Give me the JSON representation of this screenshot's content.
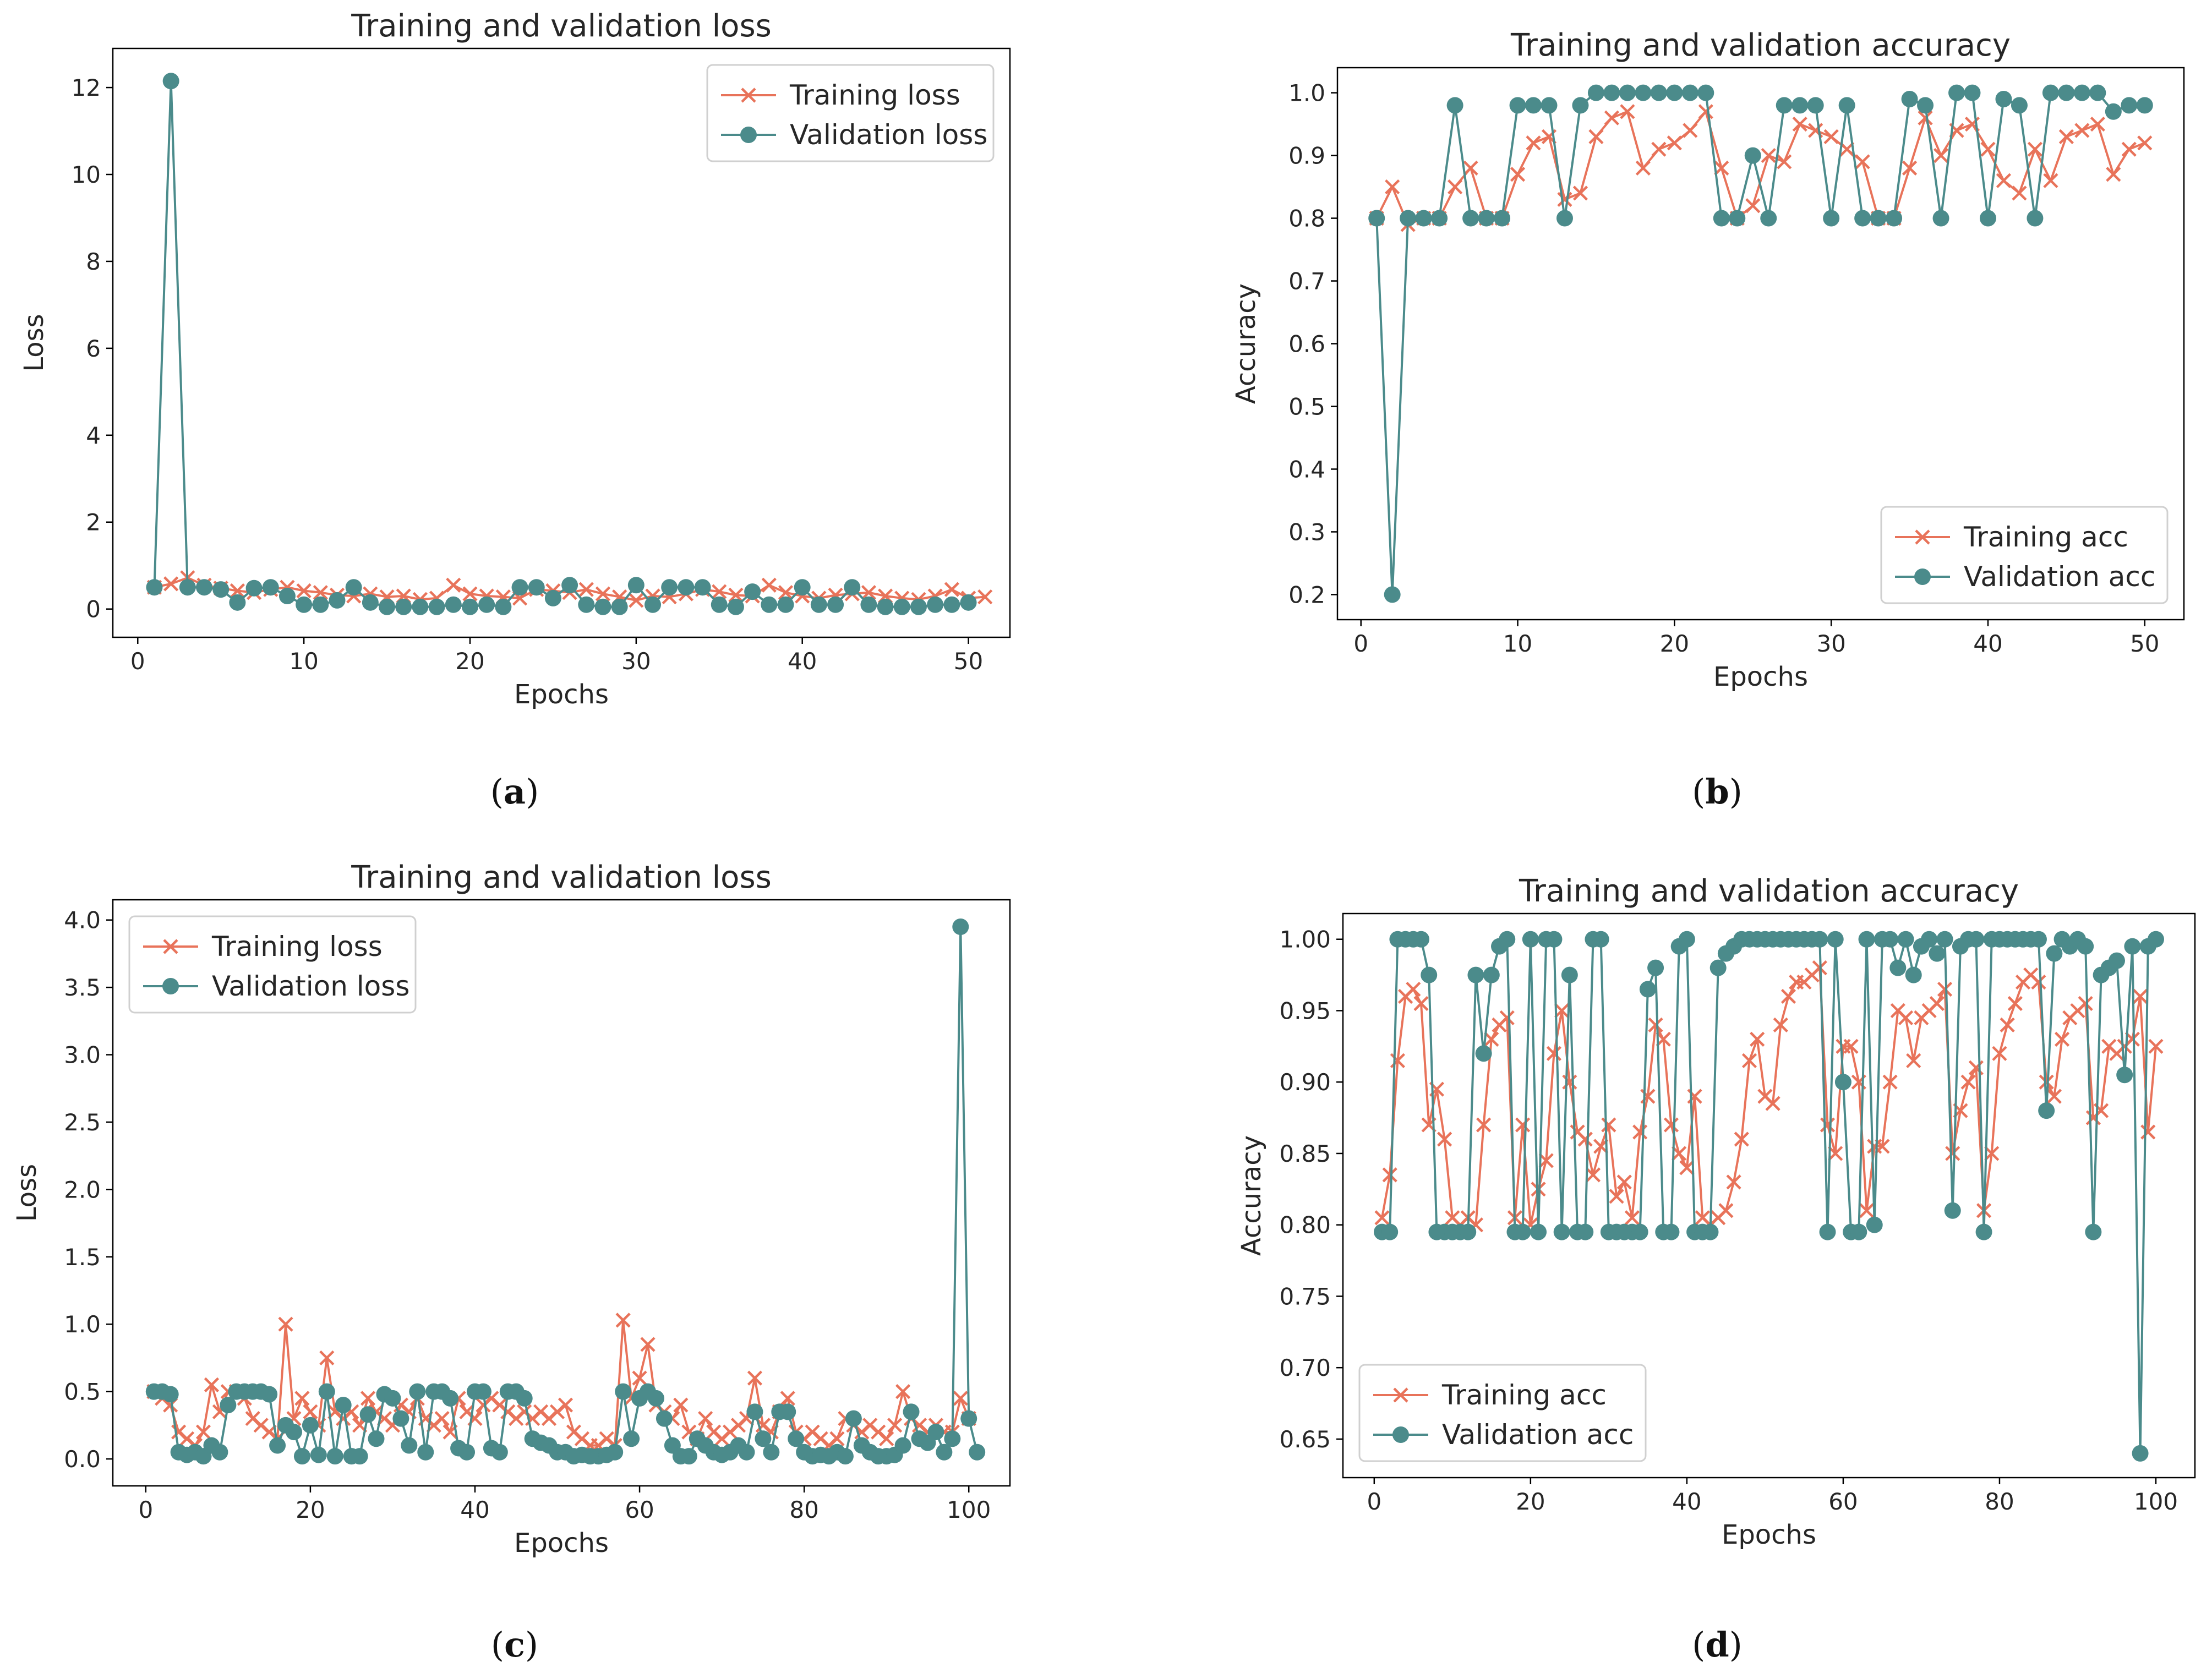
{
  "colors": {
    "training": "#e8735a",
    "validation": "#4b8b8b"
  },
  "chart_data": [
    {
      "panel": "a",
      "caption_letter": "a",
      "type": "line",
      "title": "Training and validation loss",
      "xlabel": "Epochs",
      "ylabel": "Loss",
      "xlim": [
        -1.5,
        52.5
      ],
      "ylim": [
        -0.65,
        12.9
      ],
      "xticks": [
        0,
        10,
        20,
        30,
        40,
        50
      ],
      "yticks": [
        0,
        2,
        4,
        6,
        8,
        10,
        12
      ],
      "legend_loc": "upper right",
      "x_start": 1,
      "series": [
        {
          "name": "Training loss",
          "marker": "x",
          "values": [
            0.5,
            0.58,
            0.72,
            0.55,
            0.48,
            0.42,
            0.38,
            0.45,
            0.5,
            0.42,
            0.38,
            0.32,
            0.3,
            0.35,
            0.28,
            0.3,
            0.22,
            0.25,
            0.55,
            0.35,
            0.3,
            0.28,
            0.25,
            0.45,
            0.42,
            0.38,
            0.45,
            0.35,
            0.28,
            0.2,
            0.3,
            0.28,
            0.35,
            0.45,
            0.4,
            0.32,
            0.3,
            0.55,
            0.38,
            0.3,
            0.25,
            0.32,
            0.35,
            0.38,
            0.3,
            0.25,
            0.22,
            0.3,
            0.45,
            0.25,
            0.28
          ]
        },
        {
          "name": "Validation loss",
          "marker": "o",
          "values": [
            0.5,
            12.15,
            0.5,
            0.5,
            0.45,
            0.15,
            0.48,
            0.5,
            0.3,
            0.1,
            0.1,
            0.2,
            0.5,
            0.15,
            0.05,
            0.05,
            0.05,
            0.05,
            0.1,
            0.05,
            0.1,
            0.05,
            0.5,
            0.5,
            0.25,
            0.55,
            0.1,
            0.05,
            0.05,
            0.55,
            0.1,
            0.5,
            0.5,
            0.5,
            0.1,
            0.05,
            0.4,
            0.1,
            0.1,
            0.5,
            0.1,
            0.1,
            0.5,
            0.1,
            0.05,
            0.05,
            0.05,
            0.1,
            0.1,
            0.15
          ]
        }
      ]
    },
    {
      "panel": "b",
      "caption_letter": "b",
      "type": "line",
      "title": "Training and validation accuracy",
      "xlabel": "Epochs",
      "ylabel": "Accuracy",
      "xlim": [
        -1.5,
        52.5
      ],
      "ylim": [
        0.16,
        1.04
      ],
      "xticks": [
        0,
        10,
        20,
        30,
        40,
        50
      ],
      "yticks": [
        0.2,
        0.3,
        0.4,
        0.5,
        0.6,
        0.7,
        0.8,
        0.9,
        1.0
      ],
      "legend_loc": "lower right",
      "x_start": 1,
      "series": [
        {
          "name": "Training acc",
          "marker": "x",
          "values": [
            0.8,
            0.85,
            0.79,
            0.8,
            0.8,
            0.85,
            0.88,
            0.8,
            0.8,
            0.87,
            0.92,
            0.93,
            0.83,
            0.84,
            0.93,
            0.96,
            0.97,
            0.88,
            0.91,
            0.92,
            0.94,
            0.97,
            0.88,
            0.8,
            0.82,
            0.9,
            0.89,
            0.95,
            0.94,
            0.93,
            0.91,
            0.89,
            0.8,
            0.8,
            0.88,
            0.96,
            0.9,
            0.94,
            0.95,
            0.91,
            0.86,
            0.84,
            0.91,
            0.86,
            0.93,
            0.94,
            0.95,
            0.87,
            0.91,
            0.92
          ]
        },
        {
          "name": "Validation acc",
          "marker": "o",
          "values": [
            0.8,
            0.2,
            0.8,
            0.8,
            0.8,
            0.98,
            0.8,
            0.8,
            0.8,
            0.98,
            0.98,
            0.98,
            0.8,
            0.98,
            1.0,
            1.0,
            1.0,
            1.0,
            1.0,
            1.0,
            1.0,
            1.0,
            0.8,
            0.8,
            0.9,
            0.8,
            0.98,
            0.98,
            0.98,
            0.8,
            0.98,
            0.8,
            0.8,
            0.8,
            0.99,
            0.98,
            0.8,
            1.0,
            1.0,
            0.8,
            0.99,
            0.98,
            0.8,
            1.0,
            1.0,
            1.0,
            1.0,
            0.97,
            0.98,
            0.98
          ]
        }
      ]
    },
    {
      "panel": "c",
      "caption_letter": "c",
      "type": "line",
      "title": "Training and validation loss",
      "xlabel": "Epochs",
      "ylabel": "Loss",
      "xlim": [
        -4,
        105
      ],
      "ylim": [
        -0.2,
        4.15
      ],
      "xticks": [
        0,
        20,
        40,
        60,
        80,
        100
      ],
      "yticks": [
        0.0,
        0.5,
        1.0,
        1.5,
        2.0,
        2.5,
        3.0,
        3.5,
        4.0
      ],
      "legend_loc": "upper left",
      "x_start": 1,
      "series": [
        {
          "name": "Training loss",
          "marker": "x",
          "values": [
            0.5,
            0.45,
            0.4,
            0.2,
            0.15,
            0.1,
            0.2,
            0.55,
            0.35,
            0.5,
            0.5,
            0.45,
            0.3,
            0.25,
            0.2,
            0.15,
            1.0,
            0.3,
            0.45,
            0.35,
            0.25,
            0.75,
            0.35,
            0.3,
            0.35,
            0.25,
            0.45,
            0.35,
            0.3,
            0.25,
            0.4,
            0.35,
            0.45,
            0.3,
            0.25,
            0.3,
            0.2,
            0.45,
            0.35,
            0.3,
            0.4,
            0.45,
            0.4,
            0.35,
            0.3,
            0.35,
            0.3,
            0.35,
            0.3,
            0.35,
            0.4,
            0.2,
            0.15,
            0.1,
            0.1,
            0.15,
            0.1,
            1.03,
            0.45,
            0.6,
            0.85,
            0.4,
            0.35,
            0.3,
            0.4,
            0.2,
            0.15,
            0.3,
            0.2,
            0.15,
            0.2,
            0.25,
            0.3,
            0.6,
            0.25,
            0.2,
            0.35,
            0.45,
            0.2,
            0.15,
            0.2,
            0.15,
            0.1,
            0.15,
            0.3,
            0.25,
            0.2,
            0.25,
            0.2,
            0.15,
            0.25,
            0.5,
            0.3,
            0.25,
            0.2,
            0.25,
            0.2,
            0.2,
            0.45,
            0.3
          ]
        },
        {
          "name": "Validation loss",
          "marker": "o",
          "values": [
            0.5,
            0.5,
            0.48,
            0.05,
            0.03,
            0.05,
            0.02,
            0.1,
            0.05,
            0.4,
            0.5,
            0.5,
            0.5,
            0.5,
            0.48,
            0.1,
            0.25,
            0.2,
            0.02,
            0.25,
            0.03,
            0.5,
            0.02,
            0.4,
            0.02,
            0.02,
            0.33,
            0.15,
            0.48,
            0.45,
            0.3,
            0.1,
            0.5,
            0.05,
            0.5,
            0.5,
            0.45,
            0.08,
            0.05,
            0.5,
            0.5,
            0.08,
            0.05,
            0.5,
            0.5,
            0.45,
            0.15,
            0.12,
            0.1,
            0.05,
            0.05,
            0.02,
            0.03,
            0.02,
            0.02,
            0.03,
            0.05,
            0.5,
            0.15,
            0.45,
            0.5,
            0.45,
            0.3,
            0.1,
            0.02,
            0.02,
            0.15,
            0.1,
            0.05,
            0.03,
            0.05,
            0.1,
            0.05,
            0.35,
            0.15,
            0.05,
            0.35,
            0.35,
            0.15,
            0.05,
            0.02,
            0.03,
            0.02,
            0.05,
            0.02,
            0.3,
            0.1,
            0.05,
            0.02,
            0.02,
            0.03,
            0.1,
            0.35,
            0.15,
            0.12,
            0.2,
            0.05,
            0.15,
            3.95,
            0.3,
            0.05
          ]
        }
      ]
    },
    {
      "panel": "d",
      "caption_letter": "d",
      "type": "line",
      "title": "Training and validation accuracy",
      "xlabel": "Epochs",
      "ylabel": "Accuracy",
      "xlim": [
        -4,
        105
      ],
      "ylim": [
        0.623,
        1.018
      ],
      "xticks": [
        0,
        20,
        40,
        60,
        80,
        100
      ],
      "yticks": [
        0.65,
        0.7,
        0.75,
        0.8,
        0.85,
        0.9,
        0.95,
        1.0
      ],
      "legend_loc": "lower left",
      "x_start": 1,
      "series": [
        {
          "name": "Training acc",
          "marker": "x",
          "values": [
            0.805,
            0.835,
            0.915,
            0.96,
            0.965,
            0.955,
            0.87,
            0.895,
            0.86,
            0.805,
            0.8,
            0.805,
            0.8,
            0.87,
            0.93,
            0.94,
            0.945,
            0.805,
            0.87,
            0.8,
            0.825,
            0.845,
            0.92,
            0.95,
            0.9,
            0.865,
            0.86,
            0.835,
            0.855,
            0.87,
            0.82,
            0.83,
            0.805,
            0.865,
            0.89,
            0.94,
            0.93,
            0.87,
            0.85,
            0.84,
            0.89,
            0.805,
            0.8,
            0.805,
            0.81,
            0.83,
            0.86,
            0.915,
            0.93,
            0.89,
            0.885,
            0.94,
            0.96,
            0.97,
            0.97,
            0.975,
            0.98,
            0.87,
            0.85,
            0.925,
            0.925,
            0.9,
            0.81,
            0.855,
            0.855,
            0.9,
            0.95,
            0.945,
            0.915,
            0.945,
            0.95,
            0.955,
            0.965,
            0.85,
            0.88,
            0.9,
            0.91,
            0.81,
            0.85,
            0.92,
            0.94,
            0.955,
            0.97,
            0.975,
            0.97,
            0.9,
            0.89,
            0.93,
            0.945,
            0.95,
            0.955,
            0.875,
            0.88,
            0.925,
            0.92,
            0.925,
            0.93,
            0.96,
            0.865,
            0.925
          ]
        },
        {
          "name": "Validation acc",
          "marker": "o",
          "values": [
            0.795,
            0.795,
            1.0,
            1.0,
            1.0,
            1.0,
            0.975,
            0.795,
            0.795,
            0.795,
            0.795,
            0.795,
            0.975,
            0.92,
            0.975,
            0.995,
            1.0,
            0.795,
            0.795,
            1.0,
            0.795,
            1.0,
            1.0,
            0.795,
            0.975,
            0.795,
            0.795,
            1.0,
            1.0,
            0.795,
            0.795,
            0.795,
            0.795,
            0.795,
            0.965,
            0.98,
            0.795,
            0.795,
            0.995,
            1.0,
            0.795,
            0.795,
            0.795,
            0.98,
            0.99,
            0.995,
            1.0,
            1.0,
            1.0,
            1.0,
            1.0,
            1.0,
            1.0,
            1.0,
            1.0,
            1.0,
            1.0,
            0.795,
            1.0,
            0.9,
            0.795,
            0.795,
            1.0,
            0.8,
            1.0,
            1.0,
            0.98,
            1.0,
            0.975,
            0.995,
            1.0,
            0.99,
            1.0,
            0.81,
            0.995,
            1.0,
            1.0,
            0.795,
            1.0,
            1.0,
            1.0,
            1.0,
            1.0,
            1.0,
            1.0,
            0.88,
            0.99,
            1.0,
            0.995,
            1.0,
            0.995,
            0.795,
            0.975,
            0.98,
            0.985,
            0.905,
            0.995,
            0.64,
            0.995,
            1.0
          ]
        }
      ]
    }
  ]
}
